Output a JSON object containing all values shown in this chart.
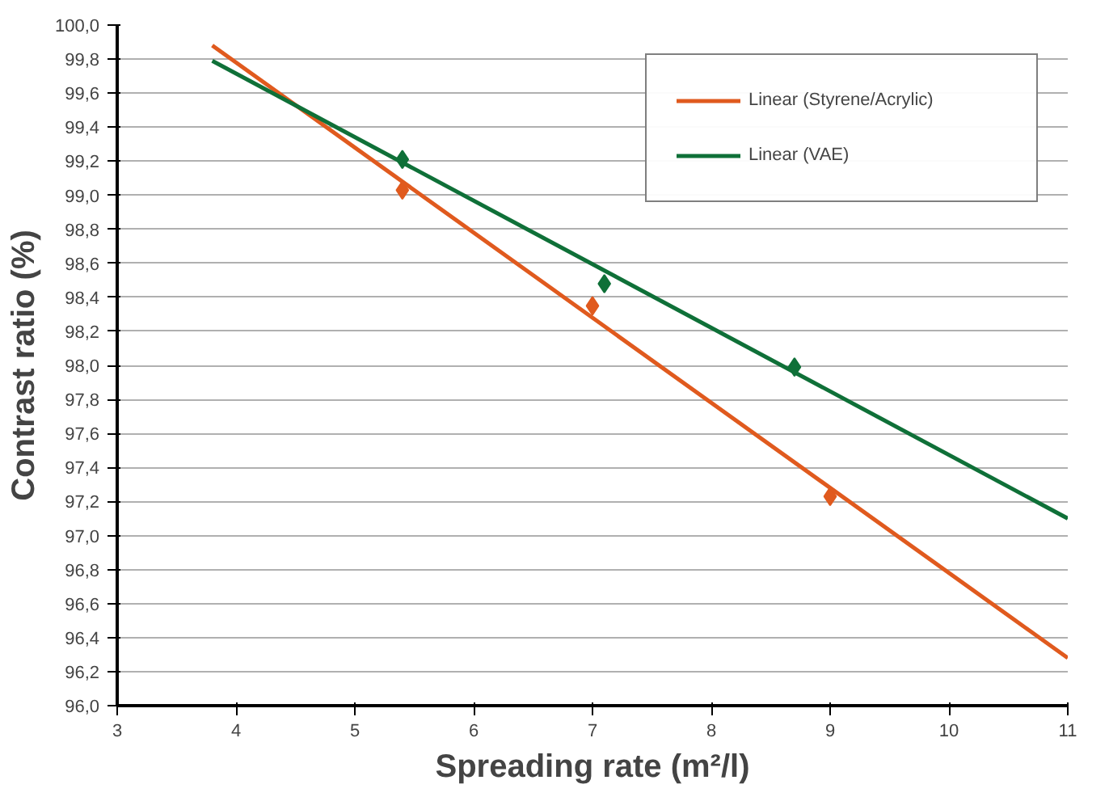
{
  "chart_data": {
    "type": "scatter",
    "xlabel": "Spreading rate (m²/l)",
    "ylabel": "Contrast ratio (%)",
    "xlim": [
      3,
      11
    ],
    "xticks": [
      3,
      4,
      5,
      6,
      7,
      8,
      9,
      10,
      11
    ],
    "ylim": [
      96,
      100
    ],
    "yticks": [
      {
        "value": 96.0,
        "label": "96,0"
      },
      {
        "value": 96.2,
        "label": "96,2"
      },
      {
        "value": 96.4,
        "label": "96,4"
      },
      {
        "value": 96.6,
        "label": "96,6"
      },
      {
        "value": 96.8,
        "label": "96,8"
      },
      {
        "value": 97.0,
        "label": "97,0"
      },
      {
        "value": 97.2,
        "label": "97,2"
      },
      {
        "value": 97.4,
        "label": "97,4"
      },
      {
        "value": 97.6,
        "label": "97,6"
      },
      {
        "value": 97.8,
        "label": "97,8"
      },
      {
        "value": 98.0,
        "label": "98,0"
      },
      {
        "value": 98.2,
        "label": "98,2"
      },
      {
        "value": 98.4,
        "label": "98,4"
      },
      {
        "value": 98.6,
        "label": "98,6"
      },
      {
        "value": 98.8,
        "label": "98,8"
      },
      {
        "value": 99.0,
        "label": "99,0"
      },
      {
        "value": 99.2,
        "label": "99,2"
      },
      {
        "value": 99.4,
        "label": "99,4"
      },
      {
        "value": 99.6,
        "label": "99,6"
      },
      {
        "value": 99.8,
        "label": "99,8"
      },
      {
        "value": 100.0,
        "label": "100,0"
      }
    ],
    "grid": "y",
    "legend": "top right",
    "series": [
      {
        "marker": "diamond",
        "color": "#e05a1e",
        "x": [
          5.4,
          7.0,
          9.0
        ],
        "values": [
          99.03,
          98.35,
          97.23
        ]
      },
      {
        "marker": "diamond",
        "color": "#0f7038",
        "x": [
          5.4,
          7.1,
          8.7
        ],
        "values": [
          99.21,
          98.48,
          97.99
        ]
      },
      {
        "type": "line",
        "name": "Linear (Styrene/Acrylic)",
        "color": "#e05a1e",
        "x": [
          3.8,
          11
        ],
        "values": [
          99.88,
          96.28
        ]
      },
      {
        "type": "line",
        "name": "Linear (VAE)",
        "color": "#0f7038",
        "x": [
          3.8,
          11
        ],
        "values": [
          99.79,
          97.1
        ]
      }
    ]
  }
}
